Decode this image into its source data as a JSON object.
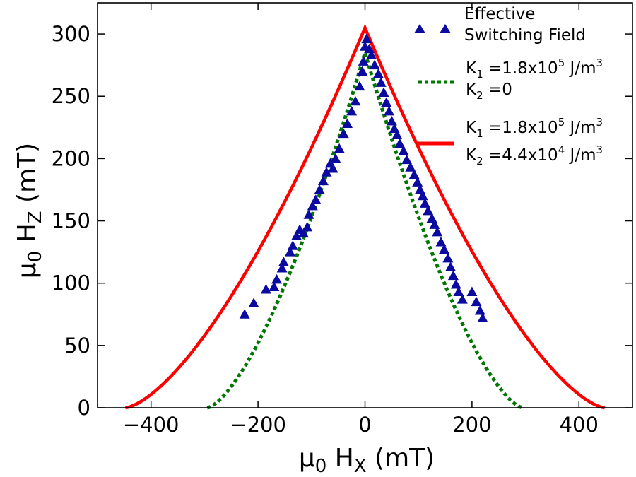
{
  "chart_data": {
    "type": "scatter",
    "xlabel": {
      "base": "μ",
      "base_sub": "0",
      "main": " H",
      "main_sub": "X",
      "unit": " (mT)"
    },
    "ylabel": {
      "base": "μ",
      "base_sub": "0",
      "main": " H",
      "main_sub": "Z",
      "unit": " (mT)"
    },
    "xlim": [
      -500,
      500
    ],
    "ylim": [
      0,
      325
    ],
    "xticks": [
      -400,
      -200,
      0,
      200,
      400
    ],
    "yticks": [
      0,
      50,
      100,
      150,
      200,
      250,
      300
    ],
    "xtick_labels": [
      "−400",
      "−200",
      "0",
      "200",
      "400"
    ],
    "ytick_labels": [
      "0",
      "50",
      "100",
      "150",
      "200",
      "250",
      "300"
    ],
    "grid": false,
    "legend_position": "top-right",
    "colors": {
      "scatter": "#0a0aa0",
      "dotted": "#007700",
      "solid": "#ff0000"
    },
    "series": [
      {
        "name": "Effective Switching Field",
        "legend_lines": [
          "Effective",
          "Switching Field"
        ],
        "kind": "scatter",
        "points": [
          [
            -225,
            75
          ],
          [
            -208,
            84
          ],
          [
            -185,
            95
          ],
          [
            -170,
            97
          ],
          [
            -165,
            103
          ],
          [
            -155,
            112
          ],
          [
            -152,
            117
          ],
          [
            -140,
            125
          ],
          [
            -135,
            130
          ],
          [
            -128,
            138
          ],
          [
            -122,
            143
          ],
          [
            -115,
            140
          ],
          [
            -108,
            145
          ],
          [
            -105,
            155
          ],
          [
            -98,
            162
          ],
          [
            -92,
            167
          ],
          [
            -85,
            175
          ],
          [
            -78,
            182
          ],
          [
            -72,
            189
          ],
          [
            -65,
            196
          ],
          [
            -60,
            192
          ],
          [
            -55,
            200
          ],
          [
            -48,
            208
          ],
          [
            -40,
            220
          ],
          [
            -33,
            228
          ],
          [
            -25,
            238
          ],
          [
            -18,
            246
          ],
          [
            -10,
            258
          ],
          [
            -5,
            270
          ],
          [
            -3,
            278
          ],
          [
            0,
            290
          ],
          [
            3,
            296
          ],
          [
            8,
            288
          ],
          [
            12,
            283
          ],
          [
            18,
            275
          ],
          [
            25,
            268
          ],
          [
            30,
            261
          ],
          [
            35,
            253
          ],
          [
            40,
            245
          ],
          [
            45,
            238
          ],
          [
            50,
            230
          ],
          [
            55,
            224
          ],
          [
            60,
            219
          ],
          [
            65,
            212
          ],
          [
            72,
            206
          ],
          [
            78,
            199
          ],
          [
            85,
            193
          ],
          [
            92,
            187
          ],
          [
            98,
            181
          ],
          [
            103,
            175
          ],
          [
            108,
            170
          ],
          [
            112,
            164
          ],
          [
            118,
            158
          ],
          [
            125,
            152
          ],
          [
            130,
            147
          ],
          [
            135,
            141
          ],
          [
            142,
            133
          ],
          [
            148,
            127
          ],
          [
            155,
            120
          ],
          [
            160,
            113
          ],
          [
            165,
            106
          ],
          [
            170,
            99
          ],
          [
            175,
            93
          ],
          [
            182,
            87
          ],
          [
            200,
            93
          ],
          [
            208,
            85
          ],
          [
            215,
            78
          ],
          [
            220,
            72
          ]
        ]
      },
      {
        "name": "K1 = 1.8x10^5 J/m^3, K2 = 0",
        "kind": "line",
        "style": "dotted",
        "legend": {
          "line1": {
            "k": "K",
            "k_sub": "1",
            "eq": " =1.8x10",
            "exp": "5",
            "unit": " J/m",
            "unit_exp": "3"
          },
          "line2": {
            "k": "K",
            "k_sub": "2",
            "eq": " =0"
          }
        },
        "curve": {
          "h0": 285,
          "x0": 295,
          "p": 1.5
        }
      },
      {
        "name": "K1 = 1.8x10^5 J/m^3, K2 = 4.4x10^4 J/m^3",
        "kind": "line",
        "style": "solid",
        "legend": {
          "line1": {
            "k": "K",
            "k_sub": "1",
            "eq": " =1.8x10",
            "exp": "5",
            "unit": " J/m",
            "unit_exp": "3"
          },
          "line2": {
            "k": "K",
            "k_sub": "2",
            "eq": " =4.4x10",
            "exp": "4",
            "unit": " J/m",
            "unit_exp": "3"
          }
        },
        "curve": {
          "h0": 305,
          "x0": 448,
          "p": 1.5
        }
      }
    ]
  }
}
